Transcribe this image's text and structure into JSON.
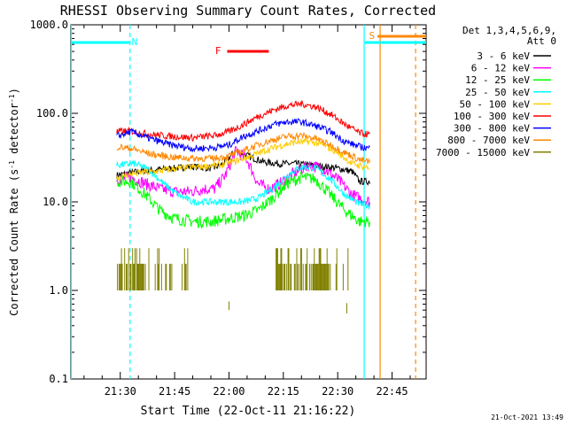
{
  "chart_data": {
    "type": "line",
    "title": "RHESSI Observing Summary Count Rates, Corrected",
    "xlabel": "Start Time (22-Oct-11 21:16:22)",
    "ylabel_main": "Corrected Count Rate (s",
    "ylabel_sup1": "-1",
    "ylabel_mid": " detector",
    "ylabel_sup2": "-1",
    "ylabel_end": ")",
    "yscale": "log",
    "ylim": [
      0.1,
      1000.0
    ],
    "xlim_minutes": [
      16.37,
      114.4
    ],
    "x_ticks": [
      {
        "m": 30,
        "label": "21:30"
      },
      {
        "m": 45,
        "label": "21:45"
      },
      {
        "m": 60,
        "label": "22:00"
      },
      {
        "m": 75,
        "label": "22:15"
      },
      {
        "m": 90,
        "label": "22:30"
      },
      {
        "m": 105,
        "label": "22:45"
      }
    ],
    "y_ticks": [
      {
        "v": 0.1,
        "label": "0.1"
      },
      {
        "v": 1.0,
        "label": "1.0"
      },
      {
        "v": 10.0,
        "label": "10.0"
      },
      {
        "v": 100.0,
        "label": "100.0"
      },
      {
        "v": 1000.0,
        "label": "1000.0"
      }
    ],
    "legend_header": [
      "Det 1,3,4,5,6,9,",
      "Att 0"
    ],
    "legend_position": "top-right",
    "series": [
      {
        "name": "3 - 6 keV",
        "color": "#000000",
        "x": [
          29,
          35,
          40,
          45,
          50,
          55,
          58,
          62,
          66,
          70,
          74,
          78,
          82,
          86,
          90,
          94,
          96,
          99
        ],
        "y": [
          20,
          22,
          23,
          24,
          25,
          24,
          26,
          38,
          32,
          28,
          27,
          27,
          26,
          25,
          24,
          22,
          17,
          17
        ]
      },
      {
        "name": "6 - 12 keV",
        "color": "#ff00ff",
        "x": [
          29,
          33,
          37,
          41,
          45,
          49,
          53,
          56,
          59,
          62,
          65,
          68,
          71,
          74,
          78,
          82,
          86,
          90,
          94,
          96,
          99
        ],
        "y": [
          18,
          19,
          16,
          14,
          13,
          13,
          14,
          14,
          20,
          38,
          30,
          16,
          14,
          16,
          21,
          26,
          24,
          18,
          12,
          11,
          10
        ]
      },
      {
        "name": "12 - 25 keV",
        "color": "#00ff00",
        "x": [
          29,
          33,
          37,
          41,
          45,
          50,
          55,
          60,
          64,
          68,
          72,
          76,
          80,
          84,
          88,
          92,
          96,
          99
        ],
        "y": [
          17,
          17,
          12,
          8,
          6.5,
          6,
          6,
          6.5,
          7,
          8,
          11,
          16,
          19,
          18,
          12,
          8,
          6,
          6
        ]
      },
      {
        "name": "25 - 50 keV",
        "color": "#00ffff",
        "x": [
          29,
          34,
          38,
          42,
          46,
          50,
          55,
          60,
          64,
          68,
          72,
          76,
          80,
          84,
          88,
          92,
          96,
          99
        ],
        "y": [
          26,
          27,
          23,
          16,
          12,
          10,
          10,
          10,
          10,
          11,
          14,
          20,
          25,
          24,
          18,
          12,
          9.5,
          9
        ]
      },
      {
        "name": "50 - 100 keV",
        "color": "#ffcc00",
        "x": [
          29,
          34,
          40,
          46,
          52,
          58,
          62,
          66,
          70,
          74,
          78,
          82,
          86,
          90,
          94,
          99
        ],
        "y": [
          19,
          21,
          22,
          24,
          25,
          26,
          29,
          33,
          38,
          43,
          47,
          48,
          44,
          36,
          27,
          24
        ]
      },
      {
        "name": "100 - 300 keV",
        "color": "#ff0000",
        "x": [
          29,
          33,
          38,
          44,
          50,
          56,
          60,
          64,
          68,
          72,
          76,
          80,
          84,
          88,
          92,
          96,
          99
        ],
        "y": [
          62,
          63,
          58,
          55,
          53,
          56,
          62,
          75,
          92,
          108,
          122,
          128,
          118,
          98,
          75,
          60,
          57
        ]
      },
      {
        "name": "300 - 800 keV",
        "color": "#0000ff",
        "x": [
          29,
          33,
          38,
          44,
          50,
          56,
          60,
          64,
          68,
          72,
          76,
          80,
          84,
          88,
          92,
          96,
          99
        ],
        "y": [
          55,
          62,
          52,
          44,
          40,
          41,
          44,
          55,
          63,
          74,
          80,
          80,
          72,
          62,
          48,
          42,
          40
        ]
      },
      {
        "name": "800 - 7000 keV",
        "color": "#ff8800",
        "x": [
          29,
          33,
          38,
          44,
          50,
          56,
          60,
          64,
          68,
          72,
          76,
          80,
          84,
          88,
          92,
          96,
          99
        ],
        "y": [
          42,
          40,
          35,
          32,
          31,
          31,
          33,
          38,
          44,
          50,
          55,
          56,
          52,
          44,
          36,
          30,
          28
        ]
      },
      {
        "name": "7000 - 15000 keV",
        "color": "#808000",
        "x": [],
        "y": []
      }
    ],
    "annotations": [
      {
        "text": "N",
        "color": "#00ffff",
        "x_minutes": 32.5
      },
      {
        "text": "S",
        "color": "#ff8800",
        "x_minutes": 97.0
      },
      {
        "text": "F",
        "color": "#ff0000",
        "x_minutes": 57.0
      }
    ],
    "interval_bars": [
      {
        "label": "N",
        "color": "#00ffff",
        "from": 16.37,
        "to": 32.5
      },
      {
        "label": "S",
        "color": "#ff8800",
        "from": 101.0,
        "to": 114.4
      },
      {
        "label": "S",
        "color": "#00ffff",
        "from": 97.5,
        "to": 114.4
      },
      {
        "label": "F",
        "color": "#ff0000",
        "from": 59.5,
        "to": 71.0
      }
    ],
    "vertical_lines": [
      {
        "x_minutes": 16.5,
        "color": "#00ffff",
        "style": "solid"
      },
      {
        "x_minutes": 32.7,
        "color": "#00ffff",
        "style": "dashed"
      },
      {
        "x_minutes": 97.3,
        "color": "#00ffff",
        "style": "solid"
      },
      {
        "x_minutes": 101.7,
        "color": "#ff8800",
        "style": "solid"
      },
      {
        "x_minutes": 111.5,
        "color": "#ff8800",
        "style": "dashed"
      }
    ],
    "footer_timestamp": "21-Oct-2021 13:49"
  }
}
